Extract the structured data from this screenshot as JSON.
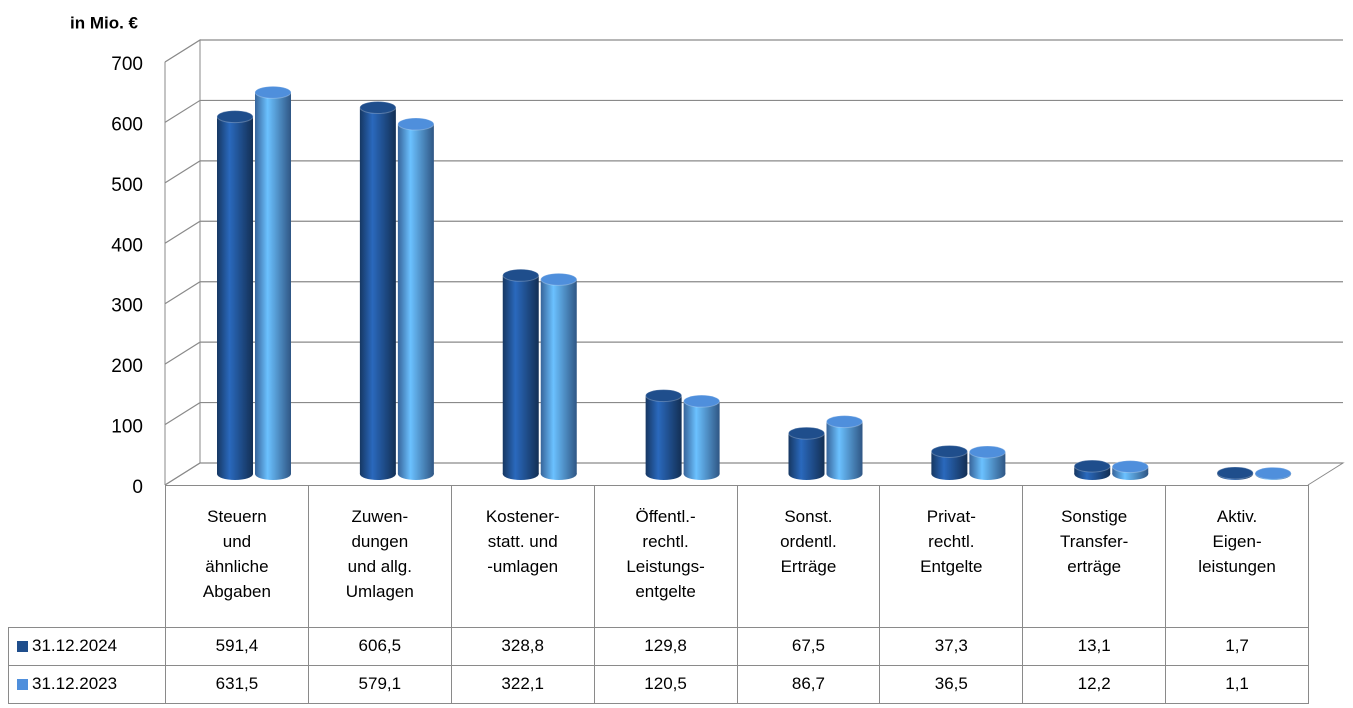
{
  "chart_data": {
    "type": "bar3d",
    "axis_label": "in Mio. €",
    "categories": [
      "Steuern\nund\nähnliche\nAbgaben",
      "Zuwen-\ndungen\nund allg.\nUmlagen",
      "Kostener-\nstatt. und\n-umlagen",
      "Öffentl.-\nrechtl.\nLeistungs-\nentgelte",
      "Sonst.\nordentl.\nErträge",
      "Privat-\nrechtl.\nEntgelte",
      "Sonstige\nTransfer-\nerträge",
      "Aktiv.\nEigen-\nleistungen"
    ],
    "series": [
      {
        "name": "31.12.2024",
        "color": "#1f4e8c",
        "values": [
          591.4,
          606.5,
          328.8,
          129.8,
          67.5,
          37.3,
          13.1,
          1.7
        ],
        "value_labels": [
          "591,4",
          "606,5",
          "328,8",
          "129,8",
          "67,5",
          "37,3",
          "13,1",
          "1,7"
        ]
      },
      {
        "name": "31.12.2023",
        "color": "#4f8fdc",
        "values": [
          631.5,
          579.1,
          322.1,
          120.5,
          86.7,
          36.5,
          12.2,
          1.1
        ],
        "value_labels": [
          "631,5",
          "579,1",
          "322,1",
          "120,5",
          "86,7",
          "36,5",
          "12,2",
          "1,1"
        ]
      }
    ],
    "ylim": [
      0,
      700
    ],
    "yticks": [
      0,
      100,
      200,
      300,
      400,
      500,
      600,
      700
    ],
    "grid": true,
    "legend": "table"
  }
}
